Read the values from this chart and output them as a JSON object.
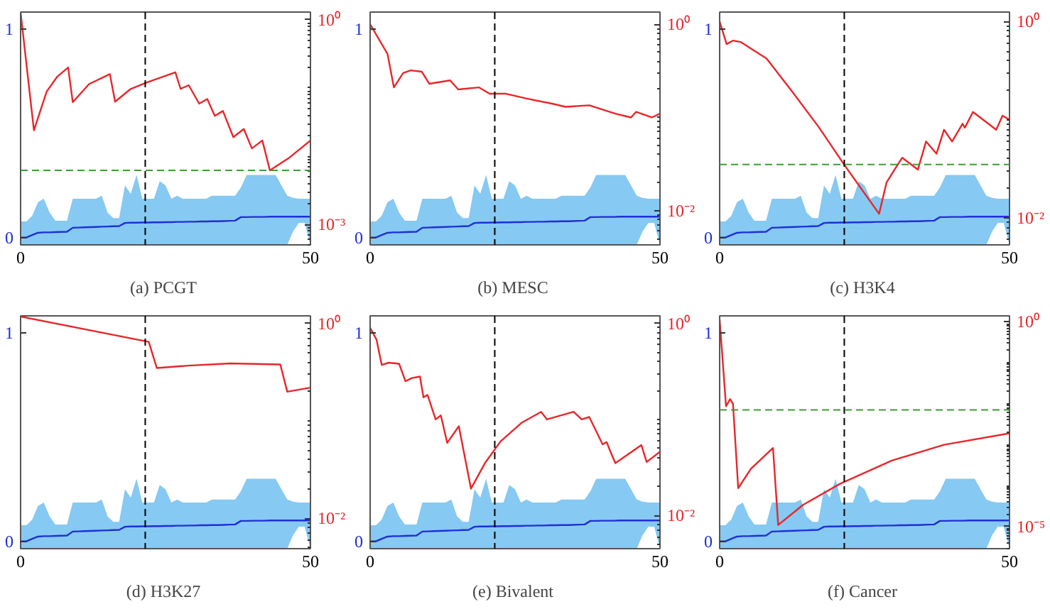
{
  "chart_data": [
    {
      "type": "line",
      "title": "(a)  PCGT",
      "xlim": [
        0,
        50
      ],
      "xticks": [
        0,
        50
      ],
      "ylim": [
        -0.035,
        1.08
      ],
      "yticks": [
        0,
        1
      ],
      "y2lim": [
        0.0005,
        1.3
      ],
      "y2ticks": [
        {
          "value": 1,
          "label": "10⁰"
        },
        {
          "value": 0.001,
          "label": "10⁻³"
        }
      ],
      "log": "y2",
      "grid": false,
      "ref_lines": [
        {
          "axis": "x",
          "value": 21.5,
          "color": "#000000",
          "line_style": "dashed"
        },
        {
          "axis": "y2",
          "value": 0.0062,
          "color": "#3f9c35",
          "line_style": "dashed"
        }
      ],
      "series": [
        {
          "color": "#1f2fd6",
          "x": [
            0,
            1,
            2,
            3,
            4,
            5,
            6,
            7,
            8,
            9,
            10,
            11,
            12,
            13,
            14,
            15,
            16,
            17,
            18,
            19,
            20,
            21,
            22,
            23,
            24,
            25,
            26,
            27,
            28,
            29,
            30,
            31,
            32,
            33,
            34,
            35,
            36,
            37,
            38,
            39,
            40,
            41,
            42,
            43,
            44,
            45,
            46,
            47,
            48,
            49,
            50
          ],
          "values": [
            0,
            0,
            0.012,
            0.023,
            0.025,
            0.025,
            0.026,
            0.027,
            0.028,
            0.047,
            0.048,
            0.049,
            0.05,
            0.051,
            0.052,
            0.053,
            0.054,
            0.055,
            0.07,
            0.071,
            0.071,
            0.072,
            0.072,
            0.073,
            0.073,
            0.074,
            0.074,
            0.075,
            0.075,
            0.076,
            0.076,
            0.077,
            0.077,
            0.078,
            0.078,
            0.079,
            0.08,
            0.081,
            0.098,
            0.098,
            0.099,
            0.099,
            0.099,
            0.1,
            0.1,
            0.1,
            0.1,
            0.1,
            0.1,
            0.1,
            0.1
          ],
          "lower": [
            -0.035,
            -0.035,
            -0.035,
            -0.035,
            -0.035,
            -0.035,
            -0.035,
            -0.035,
            -0.035,
            -0.035,
            -0.035,
            -0.035,
            -0.035,
            -0.035,
            -0.035,
            -0.035,
            -0.035,
            -0.035,
            -0.035,
            -0.035,
            -0.035,
            -0.035,
            -0.035,
            -0.035,
            -0.035,
            -0.035,
            -0.035,
            -0.035,
            -0.035,
            -0.035,
            -0.035,
            -0.035,
            -0.035,
            -0.035,
            -0.035,
            -0.035,
            -0.035,
            -0.035,
            -0.035,
            -0.035,
            -0.035,
            -0.035,
            -0.035,
            -0.035,
            -0.035,
            -0.035,
            -0.035,
            0.03,
            0.07,
            0.07,
            -0.035
          ],
          "upper": [
            0.077,
            0.077,
            0.104,
            0.17,
            0.186,
            0.12,
            0.081,
            0.081,
            0.081,
            0.186,
            0.186,
            0.186,
            0.186,
            0.186,
            0.2,
            0.12,
            0.093,
            0.093,
            0.25,
            0.21,
            0.3,
            0.186,
            0.186,
            0.186,
            0.27,
            0.25,
            0.186,
            0.2,
            0.186,
            0.186,
            0.186,
            0.186,
            0.186,
            0.2,
            0.2,
            0.2,
            0.2,
            0.2,
            0.24,
            0.3,
            0.3,
            0.3,
            0.3,
            0.3,
            0.3,
            0.25,
            0.2,
            0.19,
            0.186,
            0.186,
            0.186
          ]
        },
        {
          "color": "#e8262a",
          "axis": "y2",
          "x": [
            0,
            2.3,
            4.5,
            6.3,
            8.2,
            9,
            11.8,
            15.4,
            16.3,
            19,
            21.7,
            26.7,
            27.6,
            29,
            30.8,
            32.2,
            33.5,
            34.9,
            36.7,
            38.5,
            39.9,
            41.7,
            43,
            46.2,
            50
          ],
          "values": [
            1.28,
            0.024,
            0.089,
            0.146,
            0.2,
            0.062,
            0.114,
            0.16,
            0.063,
            0.097,
            0.12,
            0.17,
            0.097,
            0.11,
            0.059,
            0.069,
            0.039,
            0.046,
            0.019,
            0.025,
            0.013,
            0.017,
            0.0062,
            0.0093,
            0.017
          ]
        }
      ]
    },
    {
      "type": "line",
      "title": "(b)  MESC",
      "xlim": [
        0,
        50
      ],
      "xticks": [
        0,
        50
      ],
      "ylim": [
        -0.035,
        1.08
      ],
      "yticks": [
        0,
        1
      ],
      "y2lim": [
        0.0043,
        1.35
      ],
      "y2ticks": [
        {
          "value": 1,
          "label": "10⁰"
        },
        {
          "value": 0.01,
          "label": "10⁻²"
        }
      ],
      "log": "y2",
      "grid": false,
      "ref_lines": [
        {
          "axis": "x",
          "value": 21.5,
          "color": "#000000",
          "line_style": "dashed"
        }
      ],
      "series": [
        {
          "color": "#1f2fd6",
          "x": [
            0,
            1,
            2,
            3,
            4,
            5,
            6,
            7,
            8,
            9,
            10,
            11,
            12,
            13,
            14,
            15,
            16,
            17,
            18,
            19,
            20,
            21,
            22,
            23,
            24,
            25,
            26,
            27,
            28,
            29,
            30,
            31,
            32,
            33,
            34,
            35,
            36,
            37,
            38,
            39,
            40,
            41,
            42,
            43,
            44,
            45,
            46,
            47,
            48,
            49,
            50
          ],
          "values": [
            0,
            0,
            0.012,
            0.023,
            0.025,
            0.025,
            0.026,
            0.027,
            0.028,
            0.047,
            0.048,
            0.049,
            0.05,
            0.051,
            0.052,
            0.053,
            0.054,
            0.055,
            0.07,
            0.071,
            0.071,
            0.072,
            0.072,
            0.073,
            0.073,
            0.074,
            0.074,
            0.075,
            0.075,
            0.076,
            0.076,
            0.077,
            0.077,
            0.078,
            0.078,
            0.079,
            0.08,
            0.081,
            0.098,
            0.098,
            0.099,
            0.099,
            0.099,
            0.1,
            0.1,
            0.1,
            0.1,
            0.1,
            0.1,
            0.1,
            0.1
          ],
          "lower": [
            -0.035,
            -0.035,
            -0.035,
            -0.035,
            -0.035,
            -0.035,
            -0.035,
            -0.035,
            -0.035,
            -0.035,
            -0.035,
            -0.035,
            -0.035,
            -0.035,
            -0.035,
            -0.035,
            -0.035,
            -0.035,
            -0.035,
            -0.035,
            -0.035,
            -0.035,
            -0.035,
            -0.035,
            -0.035,
            -0.035,
            -0.035,
            -0.035,
            -0.035,
            -0.035,
            -0.035,
            -0.035,
            -0.035,
            -0.035,
            -0.035,
            -0.035,
            -0.035,
            -0.035,
            -0.035,
            -0.035,
            -0.035,
            -0.035,
            -0.035,
            -0.035,
            -0.035,
            -0.035,
            -0.035,
            0.03,
            0.07,
            0.07,
            -0.035
          ],
          "upper": [
            0.077,
            0.077,
            0.104,
            0.17,
            0.186,
            0.12,
            0.081,
            0.081,
            0.081,
            0.186,
            0.186,
            0.186,
            0.186,
            0.186,
            0.2,
            0.12,
            0.093,
            0.093,
            0.25,
            0.21,
            0.3,
            0.186,
            0.186,
            0.186,
            0.27,
            0.25,
            0.186,
            0.2,
            0.186,
            0.186,
            0.186,
            0.186,
            0.186,
            0.2,
            0.2,
            0.2,
            0.2,
            0.2,
            0.24,
            0.3,
            0.3,
            0.3,
            0.3,
            0.3,
            0.3,
            0.25,
            0.2,
            0.19,
            0.186,
            0.186,
            0.186
          ]
        },
        {
          "color": "#e8262a",
          "axis": "y2",
          "x": [
            0,
            3,
            4.1,
            5.7,
            7,
            8.9,
            10.2,
            13.8,
            15.2,
            18.8,
            20.6,
            23.3,
            26.9,
            31.5,
            33.7,
            37.8,
            42.3,
            45,
            45.9,
            48.6,
            50
          ],
          "values": [
            1.0,
            0.48,
            0.21,
            0.3,
            0.32,
            0.31,
            0.23,
            0.25,
            0.2,
            0.21,
            0.18,
            0.18,
            0.16,
            0.14,
            0.13,
            0.135,
            0.11,
            0.1,
            0.115,
            0.1,
            0.11
          ]
        }
      ]
    },
    {
      "type": "line",
      "title": "(c)  H3K4",
      "xlim": [
        0,
        50
      ],
      "xticks": [
        0,
        50
      ],
      "ylim": [
        -0.035,
        1.08
      ],
      "yticks": [
        0,
        1
      ],
      "y2lim": [
        0.0053,
        1.25
      ],
      "y2ticks": [
        {
          "value": 1,
          "label": "10⁰"
        },
        {
          "value": 0.01,
          "label": "10⁻²"
        }
      ],
      "log": "y2",
      "grid": false,
      "ref_lines": [
        {
          "axis": "x",
          "value": 21.5,
          "color": "#000000",
          "line_style": "dashed"
        },
        {
          "axis": "y2",
          "value": 0.035,
          "color": "#3f9c35",
          "line_style": "dashed"
        }
      ],
      "series": [
        {
          "color": "#1f2fd6",
          "x": [
            0,
            1,
            2,
            3,
            4,
            5,
            6,
            7,
            8,
            9,
            10,
            11,
            12,
            13,
            14,
            15,
            16,
            17,
            18,
            19,
            20,
            21,
            22,
            23,
            24,
            25,
            26,
            27,
            28,
            29,
            30,
            31,
            32,
            33,
            34,
            35,
            36,
            37,
            38,
            39,
            40,
            41,
            42,
            43,
            44,
            45,
            46,
            47,
            48,
            49,
            50
          ],
          "values": [
            0,
            0,
            0.012,
            0.023,
            0.025,
            0.025,
            0.026,
            0.027,
            0.028,
            0.047,
            0.048,
            0.049,
            0.05,
            0.051,
            0.052,
            0.053,
            0.054,
            0.055,
            0.07,
            0.071,
            0.071,
            0.072,
            0.072,
            0.073,
            0.073,
            0.074,
            0.074,
            0.075,
            0.075,
            0.076,
            0.076,
            0.077,
            0.077,
            0.078,
            0.078,
            0.079,
            0.08,
            0.081,
            0.098,
            0.098,
            0.099,
            0.099,
            0.099,
            0.1,
            0.1,
            0.1,
            0.1,
            0.1,
            0.1,
            0.1,
            0.1
          ],
          "lower": [
            -0.035,
            -0.035,
            -0.035,
            -0.035,
            -0.035,
            -0.035,
            -0.035,
            -0.035,
            -0.035,
            -0.035,
            -0.035,
            -0.035,
            -0.035,
            -0.035,
            -0.035,
            -0.035,
            -0.035,
            -0.035,
            -0.035,
            -0.035,
            -0.035,
            -0.035,
            -0.035,
            -0.035,
            -0.035,
            -0.035,
            -0.035,
            -0.035,
            -0.035,
            -0.035,
            -0.035,
            -0.035,
            -0.035,
            -0.035,
            -0.035,
            -0.035,
            -0.035,
            -0.035,
            -0.035,
            -0.035,
            -0.035,
            -0.035,
            -0.035,
            -0.035,
            -0.035,
            -0.035,
            -0.035,
            0.03,
            0.07,
            0.07,
            -0.035
          ],
          "upper": [
            0.077,
            0.077,
            0.104,
            0.17,
            0.186,
            0.12,
            0.081,
            0.081,
            0.081,
            0.186,
            0.186,
            0.186,
            0.186,
            0.186,
            0.2,
            0.12,
            0.093,
            0.093,
            0.25,
            0.21,
            0.3,
            0.186,
            0.186,
            0.186,
            0.27,
            0.25,
            0.186,
            0.2,
            0.186,
            0.186,
            0.186,
            0.186,
            0.186,
            0.2,
            0.2,
            0.2,
            0.2,
            0.2,
            0.24,
            0.3,
            0.3,
            0.3,
            0.3,
            0.3,
            0.3,
            0.25,
            0.2,
            0.19,
            0.186,
            0.186,
            0.186
          ]
        },
        {
          "color": "#e8262a",
          "axis": "y2",
          "x": [
            0,
            1.2,
            2.3,
            3.6,
            8.1,
            12.6,
            17.1,
            21.6,
            27.5,
            28.8,
            30.6,
            31.5,
            34.2,
            35.6,
            37.4,
            38.7,
            40.1,
            41.9,
            42.3,
            43.7,
            47.7,
            48.8,
            50
          ],
          "values": [
            1.0,
            0.59,
            0.64,
            0.62,
            0.42,
            0.19,
            0.084,
            0.034,
            0.011,
            0.023,
            0.034,
            0.041,
            0.031,
            0.06,
            0.045,
            0.079,
            0.06,
            0.091,
            0.083,
            0.12,
            0.079,
            0.11,
            0.1
          ]
        }
      ]
    },
    {
      "type": "line",
      "title": "(d)  H3K27",
      "xlim": [
        0,
        50
      ],
      "xticks": [
        0,
        50
      ],
      "ylim": [
        -0.035,
        1.08
      ],
      "yticks": [
        0,
        1
      ],
      "y2lim": [
        0.0049,
        1.2
      ],
      "y2ticks": [
        {
          "value": 1,
          "label": "10⁰"
        },
        {
          "value": 0.01,
          "label": "10⁻²"
        }
      ],
      "log": "y2",
      "grid": false,
      "ref_lines": [
        {
          "axis": "x",
          "value": 21.5,
          "color": "#000000",
          "line_style": "dashed"
        }
      ],
      "series": [
        {
          "color": "#1f2fd6",
          "x": [
            0,
            1,
            2,
            3,
            4,
            5,
            6,
            7,
            8,
            9,
            10,
            11,
            12,
            13,
            14,
            15,
            16,
            17,
            18,
            19,
            20,
            21,
            22,
            23,
            24,
            25,
            26,
            27,
            28,
            29,
            30,
            31,
            32,
            33,
            34,
            35,
            36,
            37,
            38,
            39,
            40,
            41,
            42,
            43,
            44,
            45,
            46,
            47,
            48,
            49,
            50
          ],
          "values": [
            0,
            0,
            0.012,
            0.023,
            0.025,
            0.025,
            0.026,
            0.027,
            0.028,
            0.047,
            0.048,
            0.049,
            0.05,
            0.051,
            0.052,
            0.053,
            0.054,
            0.055,
            0.07,
            0.071,
            0.071,
            0.072,
            0.072,
            0.073,
            0.073,
            0.074,
            0.074,
            0.075,
            0.075,
            0.076,
            0.076,
            0.077,
            0.077,
            0.078,
            0.078,
            0.079,
            0.08,
            0.081,
            0.098,
            0.098,
            0.099,
            0.099,
            0.099,
            0.1,
            0.1,
            0.1,
            0.1,
            0.1,
            0.1,
            0.1,
            0.1
          ],
          "lower": [
            -0.035,
            -0.035,
            -0.035,
            -0.035,
            -0.035,
            -0.035,
            -0.035,
            -0.035,
            -0.035,
            -0.035,
            -0.035,
            -0.035,
            -0.035,
            -0.035,
            -0.035,
            -0.035,
            -0.035,
            -0.035,
            -0.035,
            -0.035,
            -0.035,
            -0.035,
            -0.035,
            -0.035,
            -0.035,
            -0.035,
            -0.035,
            -0.035,
            -0.035,
            -0.035,
            -0.035,
            -0.035,
            -0.035,
            -0.035,
            -0.035,
            -0.035,
            -0.035,
            -0.035,
            -0.035,
            -0.035,
            -0.035,
            -0.035,
            -0.035,
            -0.035,
            -0.035,
            -0.035,
            -0.035,
            0.03,
            0.07,
            0.07,
            -0.035
          ],
          "upper": [
            0.077,
            0.077,
            0.104,
            0.17,
            0.186,
            0.12,
            0.081,
            0.081,
            0.081,
            0.186,
            0.186,
            0.186,
            0.186,
            0.186,
            0.2,
            0.12,
            0.093,
            0.093,
            0.25,
            0.21,
            0.3,
            0.186,
            0.186,
            0.186,
            0.27,
            0.25,
            0.186,
            0.2,
            0.186,
            0.186,
            0.186,
            0.186,
            0.186,
            0.2,
            0.2,
            0.2,
            0.2,
            0.2,
            0.24,
            0.3,
            0.3,
            0.3,
            0.3,
            0.3,
            0.3,
            0.25,
            0.2,
            0.19,
            0.186,
            0.186,
            0.186
          ]
        },
        {
          "color": "#e8262a",
          "axis": "y2",
          "x": [
            0,
            22.1,
            23.5,
            28.9,
            36.2,
            44.8,
            46,
            50
          ],
          "values": [
            1.18,
            0.65,
            0.35,
            0.37,
            0.39,
            0.38,
            0.2,
            0.22
          ]
        }
      ]
    },
    {
      "type": "line",
      "title": "(e)  Bivalent",
      "xlim": [
        0,
        50
      ],
      "xticks": [
        0,
        50
      ],
      "ylim": [
        -0.035,
        1.08
      ],
      "yticks": [
        0,
        1
      ],
      "y2lim": [
        0.0045,
        1.2
      ],
      "y2ticks": [
        {
          "value": 1,
          "label": "10⁰"
        },
        {
          "value": 0.01,
          "label": "10⁻²"
        }
      ],
      "log": "y2",
      "grid": false,
      "ref_lines": [
        {
          "axis": "x",
          "value": 21.5,
          "color": "#000000",
          "line_style": "dashed"
        }
      ],
      "series": [
        {
          "color": "#1f2fd6",
          "x": [
            0,
            1,
            2,
            3,
            4,
            5,
            6,
            7,
            8,
            9,
            10,
            11,
            12,
            13,
            14,
            15,
            16,
            17,
            18,
            19,
            20,
            21,
            22,
            23,
            24,
            25,
            26,
            27,
            28,
            29,
            30,
            31,
            32,
            33,
            34,
            35,
            36,
            37,
            38,
            39,
            40,
            41,
            42,
            43,
            44,
            45,
            46,
            47,
            48,
            49,
            50
          ],
          "values": [
            0,
            0,
            0.012,
            0.023,
            0.025,
            0.025,
            0.026,
            0.027,
            0.028,
            0.047,
            0.048,
            0.049,
            0.05,
            0.051,
            0.052,
            0.053,
            0.054,
            0.055,
            0.07,
            0.071,
            0.071,
            0.072,
            0.072,
            0.073,
            0.073,
            0.074,
            0.074,
            0.075,
            0.075,
            0.076,
            0.076,
            0.077,
            0.077,
            0.078,
            0.078,
            0.079,
            0.08,
            0.081,
            0.098,
            0.098,
            0.099,
            0.099,
            0.099,
            0.1,
            0.1,
            0.1,
            0.1,
            0.1,
            0.1,
            0.1,
            0.1
          ],
          "lower": [
            -0.035,
            -0.035,
            -0.035,
            -0.035,
            -0.035,
            -0.035,
            -0.035,
            -0.035,
            -0.035,
            -0.035,
            -0.035,
            -0.035,
            -0.035,
            -0.035,
            -0.035,
            -0.035,
            -0.035,
            -0.035,
            -0.035,
            -0.035,
            -0.035,
            -0.035,
            -0.035,
            -0.035,
            -0.035,
            -0.035,
            -0.035,
            -0.035,
            -0.035,
            -0.035,
            -0.035,
            -0.035,
            -0.035,
            -0.035,
            -0.035,
            -0.035,
            -0.035,
            -0.035,
            -0.035,
            -0.035,
            -0.035,
            -0.035,
            -0.035,
            -0.035,
            -0.035,
            -0.035,
            -0.035,
            0.03,
            0.07,
            0.07,
            -0.035
          ],
          "upper": [
            0.077,
            0.077,
            0.104,
            0.17,
            0.186,
            0.12,
            0.081,
            0.081,
            0.081,
            0.186,
            0.186,
            0.186,
            0.186,
            0.186,
            0.2,
            0.12,
            0.093,
            0.093,
            0.25,
            0.21,
            0.3,
            0.186,
            0.186,
            0.186,
            0.27,
            0.25,
            0.186,
            0.2,
            0.186,
            0.186,
            0.186,
            0.186,
            0.186,
            0.2,
            0.2,
            0.2,
            0.2,
            0.2,
            0.24,
            0.3,
            0.3,
            0.3,
            0.3,
            0.3,
            0.3,
            0.25,
            0.2,
            0.19,
            0.186,
            0.186,
            0.186
          ]
        },
        {
          "color": "#e8262a",
          "axis": "y2",
          "x": [
            0,
            1.1,
            2,
            3.2,
            5,
            6.1,
            7.2,
            8.6,
            9.2,
            9.9,
            11.3,
            12.2,
            13.3,
            15.3,
            17.4,
            19.8,
            22.5,
            26.1,
            29.5,
            30.5,
            35.1,
            36.5,
            37.8,
            40.1,
            40.8,
            41.4,
            42.3,
            46.8,
            47.7,
            50
          ],
          "values": [
            0.9,
            0.68,
            0.37,
            0.39,
            0.38,
            0.25,
            0.27,
            0.28,
            0.17,
            0.18,
            0.1,
            0.11,
            0.057,
            0.085,
            0.019,
            0.035,
            0.059,
            0.092,
            0.12,
            0.1,
            0.12,
            0.1,
            0.106,
            0.055,
            0.058,
            0.047,
            0.035,
            0.054,
            0.036,
            0.046
          ]
        }
      ]
    },
    {
      "type": "line",
      "title": "(f)  Cancer",
      "xlim": [
        0,
        50
      ],
      "xticks": [
        0,
        50
      ],
      "ylim": [
        -0.035,
        1.08
      ],
      "yticks": [
        0,
        1
      ],
      "y2lim": [
        2.9e-06,
        1.4
      ],
      "y2ticks": [
        {
          "value": 1,
          "label": "10⁰"
        },
        {
          "value": 1e-05,
          "label": "10⁻⁵"
        }
      ],
      "log": "y2",
      "grid": false,
      "ref_lines": [
        {
          "axis": "x",
          "value": 21.5,
          "color": "#000000",
          "line_style": "dashed"
        },
        {
          "axis": "y2",
          "value": 0.0071,
          "color": "#3f9c35",
          "line_style": "dashed"
        }
      ],
      "series": [
        {
          "color": "#1f2fd6",
          "x": [
            0,
            1,
            2,
            3,
            4,
            5,
            6,
            7,
            8,
            9,
            10,
            11,
            12,
            13,
            14,
            15,
            16,
            17,
            18,
            19,
            20,
            21,
            22,
            23,
            24,
            25,
            26,
            27,
            28,
            29,
            30,
            31,
            32,
            33,
            34,
            35,
            36,
            37,
            38,
            39,
            40,
            41,
            42,
            43,
            44,
            45,
            46,
            47,
            48,
            49,
            50
          ],
          "values": [
            0,
            0,
            0.012,
            0.023,
            0.025,
            0.025,
            0.026,
            0.027,
            0.028,
            0.047,
            0.048,
            0.049,
            0.05,
            0.051,
            0.052,
            0.053,
            0.054,
            0.055,
            0.07,
            0.071,
            0.071,
            0.072,
            0.072,
            0.073,
            0.073,
            0.074,
            0.074,
            0.075,
            0.075,
            0.076,
            0.076,
            0.077,
            0.077,
            0.078,
            0.078,
            0.079,
            0.08,
            0.081,
            0.098,
            0.098,
            0.099,
            0.099,
            0.099,
            0.1,
            0.1,
            0.1,
            0.1,
            0.1,
            0.1,
            0.1,
            0.1
          ],
          "lower": [
            -0.035,
            -0.035,
            -0.035,
            -0.035,
            -0.035,
            -0.035,
            -0.035,
            -0.035,
            -0.035,
            -0.035,
            -0.035,
            -0.035,
            -0.035,
            -0.035,
            -0.035,
            -0.035,
            -0.035,
            -0.035,
            -0.035,
            -0.035,
            -0.035,
            -0.035,
            -0.035,
            -0.035,
            -0.035,
            -0.035,
            -0.035,
            -0.035,
            -0.035,
            -0.035,
            -0.035,
            -0.035,
            -0.035,
            -0.035,
            -0.035,
            -0.035,
            -0.035,
            -0.035,
            -0.035,
            -0.035,
            -0.035,
            -0.035,
            -0.035,
            -0.035,
            -0.035,
            -0.035,
            -0.035,
            0.03,
            0.07,
            0.07,
            -0.035
          ],
          "upper": [
            0.077,
            0.077,
            0.104,
            0.17,
            0.186,
            0.12,
            0.081,
            0.081,
            0.081,
            0.186,
            0.186,
            0.186,
            0.186,
            0.186,
            0.2,
            0.12,
            0.093,
            0.093,
            0.25,
            0.21,
            0.3,
            0.186,
            0.186,
            0.186,
            0.27,
            0.25,
            0.186,
            0.2,
            0.186,
            0.186,
            0.186,
            0.186,
            0.186,
            0.2,
            0.2,
            0.2,
            0.2,
            0.2,
            0.24,
            0.3,
            0.3,
            0.3,
            0.3,
            0.3,
            0.3,
            0.25,
            0.2,
            0.19,
            0.186,
            0.186,
            0.186
          ]
        },
        {
          "color": "#e8262a",
          "axis": "y2",
          "x": [
            0,
            1.1,
            1.8,
            2.3,
            3.2,
            5.4,
            9.2,
            10.1,
            14.4,
            20.7,
            29.7,
            38.7,
            50
          ],
          "values": [
            1.15,
            0.0087,
            0.013,
            0.01,
            8.7e-05,
            0.00026,
            0.00083,
            1.1e-05,
            3.4e-05,
            0.00011,
            0.00041,
            0.001,
            0.0019
          ]
        }
      ]
    }
  ]
}
